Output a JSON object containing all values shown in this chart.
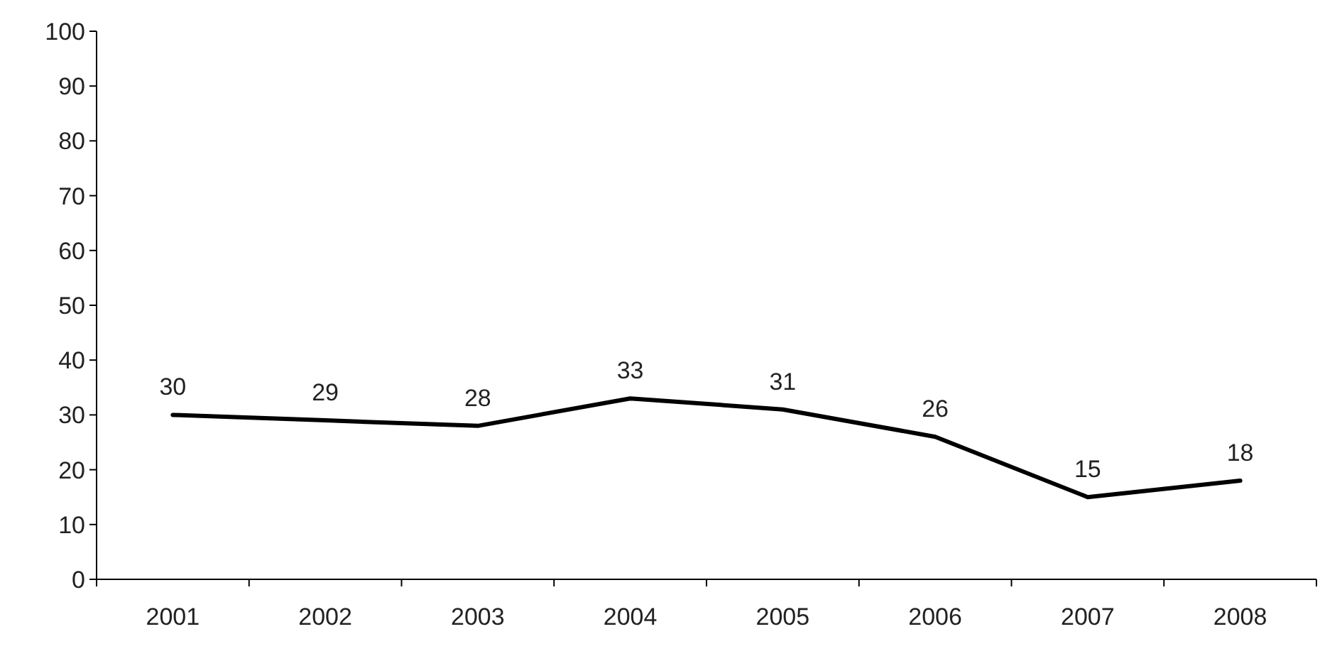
{
  "chart_data": {
    "type": "line",
    "categories": [
      "2001",
      "2002",
      "2003",
      "2004",
      "2005",
      "2006",
      "2007",
      "2008"
    ],
    "series": [
      {
        "color": "#000000",
        "values": [
          30,
          29,
          28,
          33,
          31,
          26,
          15,
          18
        ]
      }
    ],
    "ylim": [
      0,
      100
    ],
    "yticks": [
      0,
      10,
      20,
      30,
      40,
      50,
      60,
      70,
      80,
      90,
      100
    ],
    "data_labels": true,
    "grid": false,
    "marker": "none",
    "line_style": "solid"
  }
}
